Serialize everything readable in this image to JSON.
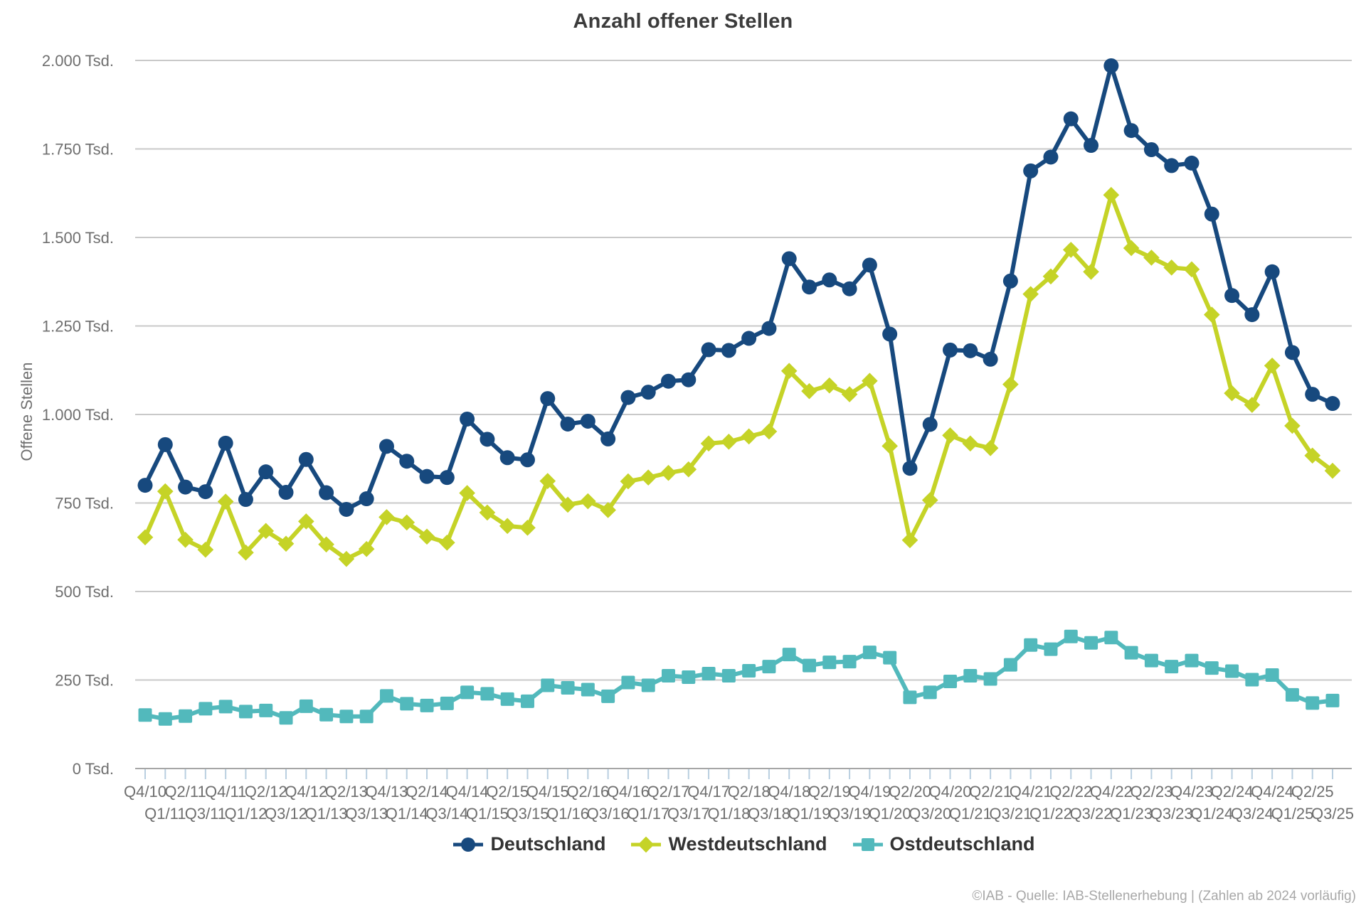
{
  "title": "Anzahl offener Stellen",
  "footer": "©IAB - Quelle: IAB-Stellenerhebung | (Zahlen ab 2024 vorläufig)",
  "y_axis": {
    "title": "Offene Stellen",
    "ticks": [
      {
        "value": 0,
        "label": "0 Tsd."
      },
      {
        "value": 250,
        "label": "250 Tsd."
      },
      {
        "value": 500,
        "label": "500 Tsd."
      },
      {
        "value": 750,
        "label": "750 Tsd."
      },
      {
        "value": 1000,
        "label": "1.000 Tsd."
      },
      {
        "value": 1250,
        "label": "1.250 Tsd."
      },
      {
        "value": 1500,
        "label": "1.500 Tsd."
      },
      {
        "value": 1750,
        "label": "1.750 Tsd."
      },
      {
        "value": 2000,
        "label": "2.000 Tsd."
      }
    ]
  },
  "legend": [
    {
      "name": "Deutschland",
      "color": "#17497e",
      "marker": "circle"
    },
    {
      "name": "Westdeutschland",
      "color": "#c5d327",
      "marker": "diamond"
    },
    {
      "name": "Ostdeutschland",
      "color": "#52b9bc",
      "marker": "square"
    }
  ],
  "colors": {
    "grid": "#c9c9c9",
    "axis": "#a6a6a6",
    "tick": "#b9cfe0",
    "tick_label": "#6f6f6f"
  },
  "chart_data": {
    "type": "line",
    "title": "Anzahl offener Stellen",
    "ylabel": "Offene Stellen",
    "unit": "Tsd.",
    "ylim": [
      0,
      2000
    ],
    "ytick_step": 250,
    "grid": "horizontal",
    "legend_position": "bottom",
    "x": [
      "Q4/10",
      "Q1/11",
      "Q2/11",
      "Q3/11",
      "Q4/11",
      "Q1/12",
      "Q2/12",
      "Q3/12",
      "Q4/12",
      "Q1/13",
      "Q2/13",
      "Q3/13",
      "Q4/13",
      "Q1/14",
      "Q2/14",
      "Q3/14",
      "Q4/14",
      "Q1/15",
      "Q2/15",
      "Q3/15",
      "Q4/15",
      "Q1/16",
      "Q2/16",
      "Q3/16",
      "Q4/16",
      "Q1/17",
      "Q2/17",
      "Q3/17",
      "Q4/17",
      "Q1/18",
      "Q2/18",
      "Q3/18",
      "Q4/18",
      "Q1/19",
      "Q2/19",
      "Q3/19",
      "Q4/19",
      "Q1/20",
      "Q2/20",
      "Q3/20",
      "Q4/20",
      "Q1/21",
      "Q2/21",
      "Q3/21",
      "Q4/21",
      "Q1/22",
      "Q2/22",
      "Q3/22",
      "Q4/22",
      "Q1/23",
      "Q2/23",
      "Q3/23",
      "Q4/23",
      "Q1/24",
      "Q2/24",
      "Q3/24",
      "Q4/24",
      "Q1/25",
      "Q2/25",
      "Q3/25"
    ],
    "series": [
      {
        "name": "Deutschland",
        "color": "#17497e",
        "marker": "circle",
        "values": [
          800,
          915,
          795,
          782,
          919,
          760,
          838,
          780,
          873,
          779,
          732,
          762,
          910,
          868,
          825,
          822,
          987,
          930,
          878,
          872,
          1045,
          973,
          981,
          931,
          1048,
          1063,
          1094,
          1098,
          1183,
          1181,
          1215,
          1243,
          1440,
          1360,
          1380,
          1355,
          1422,
          1227,
          848,
          972,
          1182,
          1180,
          1156,
          1377,
          1688,
          1727,
          1835,
          1760,
          1985,
          1802,
          1748,
          1703,
          1710,
          1566,
          1336,
          1282,
          1403,
          1175,
          1057,
          1031
        ]
      },
      {
        "name": "Westdeutschland",
        "color": "#c5d327",
        "marker": "diamond",
        "values": [
          653,
          783,
          646,
          618,
          754,
          610,
          671,
          635,
          698,
          633,
          592,
          620,
          710,
          695,
          655,
          638,
          778,
          723,
          685,
          680,
          812,
          745,
          755,
          730,
          811,
          822,
          835,
          845,
          918,
          923,
          938,
          952,
          1123,
          1066,
          1082,
          1057,
          1095,
          911,
          645,
          758,
          941,
          918,
          905,
          1085,
          1340,
          1390,
          1465,
          1403,
          1620,
          1470,
          1443,
          1415,
          1410,
          1282,
          1060,
          1027,
          1138,
          968,
          884,
          841
        ]
      },
      {
        "name": "Ostdeutschland",
        "color": "#52b9bc",
        "marker": "square",
        "values": [
          151,
          140,
          148,
          169,
          175,
          161,
          164,
          143,
          176,
          152,
          147,
          147,
          205,
          183,
          178,
          184,
          215,
          211,
          196,
          190,
          235,
          228,
          223,
          204,
          243,
          235,
          262,
          258,
          268,
          262,
          276,
          288,
          322,
          291,
          300,
          302,
          328,
          313,
          201,
          215,
          246,
          262,
          253,
          293,
          349,
          337,
          373,
          355,
          370,
          327,
          305,
          288,
          305,
          284,
          275,
          251,
          264,
          208,
          185,
          192
        ]
      }
    ]
  }
}
